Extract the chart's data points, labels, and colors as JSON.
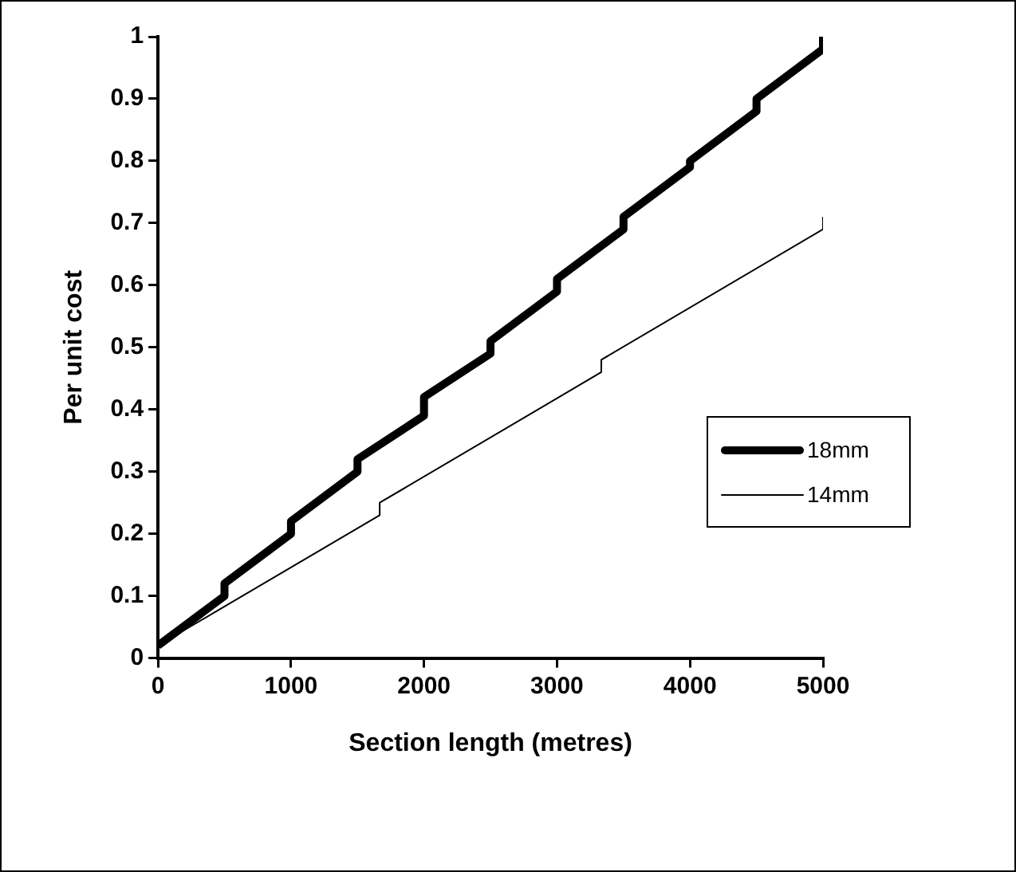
{
  "chart_data": {
    "type": "line",
    "xlabel": "Section length (metres)",
    "ylabel": "Per unit cost",
    "xlim": [
      0,
      5000
    ],
    "xticks": [
      0,
      1000,
      2000,
      3000,
      4000,
      5000
    ],
    "ylim": [
      0,
      1
    ],
    "yticks": [
      0,
      0.1,
      0.2,
      0.3,
      0.4,
      0.5,
      0.6,
      0.7,
      0.8,
      0.9,
      1
    ],
    "grid": false,
    "legend": "right",
    "marker": "none",
    "line_style": "solid",
    "series": [
      {
        "name": "18mm",
        "color": "#000000",
        "x": [
          0,
          500,
          500,
          1000,
          1000,
          1500,
          1500,
          2000,
          2000,
          2500,
          2500,
          3000,
          3000,
          3500,
          3500,
          4000,
          4000,
          4500,
          4500,
          5000,
          5000
        ],
        "values": [
          0.02,
          0.1,
          0.12,
          0.2,
          0.22,
          0.3,
          0.32,
          0.39,
          0.42,
          0.49,
          0.51,
          0.59,
          0.61,
          0.69,
          0.71,
          0.79,
          0.8,
          0.88,
          0.9,
          0.98,
          1.0
        ]
      },
      {
        "name": "14mm",
        "color": "#000000",
        "x": [
          0,
          1667,
          1667,
          3333,
          3333,
          5000,
          5000
        ],
        "values": [
          0.02,
          0.23,
          0.25,
          0.46,
          0.48,
          0.69,
          0.71
        ]
      }
    ]
  }
}
